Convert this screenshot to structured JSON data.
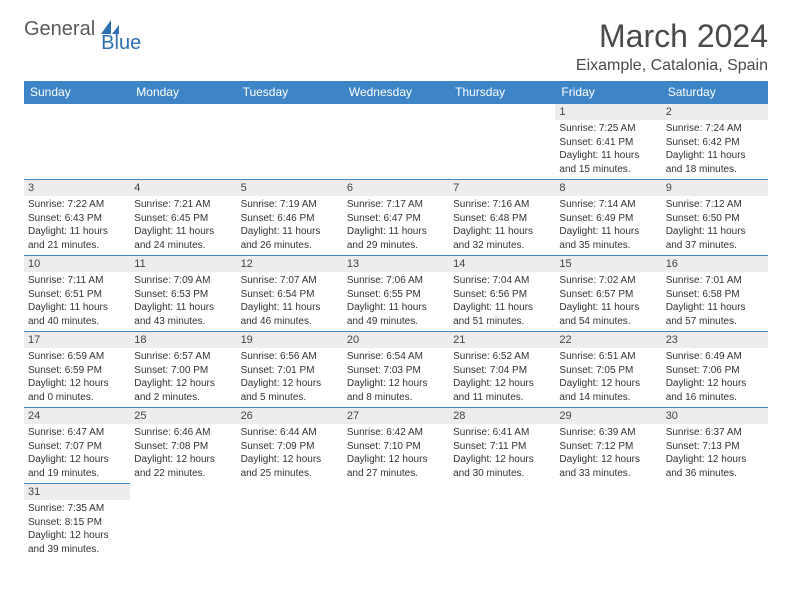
{
  "brand": {
    "part1": "General",
    "part2": "Blue"
  },
  "title": "March 2024",
  "location": "Eixample, Catalonia, Spain",
  "colors": {
    "header_bg": "#3d85c6",
    "header_fg": "#ffffff",
    "daynum_bg": "#ededed",
    "border": "#3d85c6",
    "brand_gray": "#5a5a5a",
    "brand_blue": "#2d6fb0"
  },
  "weekdays": [
    "Sunday",
    "Monday",
    "Tuesday",
    "Wednesday",
    "Thursday",
    "Friday",
    "Saturday"
  ],
  "weeks": [
    [
      {
        "empty": true
      },
      {
        "empty": true
      },
      {
        "empty": true
      },
      {
        "empty": true
      },
      {
        "empty": true
      },
      {
        "day": "1",
        "sunrise": "Sunrise: 7:25 AM",
        "sunset": "Sunset: 6:41 PM",
        "daylight": "Daylight: 11 hours and 15 minutes."
      },
      {
        "day": "2",
        "sunrise": "Sunrise: 7:24 AM",
        "sunset": "Sunset: 6:42 PM",
        "daylight": "Daylight: 11 hours and 18 minutes."
      }
    ],
    [
      {
        "day": "3",
        "sunrise": "Sunrise: 7:22 AM",
        "sunset": "Sunset: 6:43 PM",
        "daylight": "Daylight: 11 hours and 21 minutes."
      },
      {
        "day": "4",
        "sunrise": "Sunrise: 7:21 AM",
        "sunset": "Sunset: 6:45 PM",
        "daylight": "Daylight: 11 hours and 24 minutes."
      },
      {
        "day": "5",
        "sunrise": "Sunrise: 7:19 AM",
        "sunset": "Sunset: 6:46 PM",
        "daylight": "Daylight: 11 hours and 26 minutes."
      },
      {
        "day": "6",
        "sunrise": "Sunrise: 7:17 AM",
        "sunset": "Sunset: 6:47 PM",
        "daylight": "Daylight: 11 hours and 29 minutes."
      },
      {
        "day": "7",
        "sunrise": "Sunrise: 7:16 AM",
        "sunset": "Sunset: 6:48 PM",
        "daylight": "Daylight: 11 hours and 32 minutes."
      },
      {
        "day": "8",
        "sunrise": "Sunrise: 7:14 AM",
        "sunset": "Sunset: 6:49 PM",
        "daylight": "Daylight: 11 hours and 35 minutes."
      },
      {
        "day": "9",
        "sunrise": "Sunrise: 7:12 AM",
        "sunset": "Sunset: 6:50 PM",
        "daylight": "Daylight: 11 hours and 37 minutes."
      }
    ],
    [
      {
        "day": "10",
        "sunrise": "Sunrise: 7:11 AM",
        "sunset": "Sunset: 6:51 PM",
        "daylight": "Daylight: 11 hours and 40 minutes."
      },
      {
        "day": "11",
        "sunrise": "Sunrise: 7:09 AM",
        "sunset": "Sunset: 6:53 PM",
        "daylight": "Daylight: 11 hours and 43 minutes."
      },
      {
        "day": "12",
        "sunrise": "Sunrise: 7:07 AM",
        "sunset": "Sunset: 6:54 PM",
        "daylight": "Daylight: 11 hours and 46 minutes."
      },
      {
        "day": "13",
        "sunrise": "Sunrise: 7:06 AM",
        "sunset": "Sunset: 6:55 PM",
        "daylight": "Daylight: 11 hours and 49 minutes."
      },
      {
        "day": "14",
        "sunrise": "Sunrise: 7:04 AM",
        "sunset": "Sunset: 6:56 PM",
        "daylight": "Daylight: 11 hours and 51 minutes."
      },
      {
        "day": "15",
        "sunrise": "Sunrise: 7:02 AM",
        "sunset": "Sunset: 6:57 PM",
        "daylight": "Daylight: 11 hours and 54 minutes."
      },
      {
        "day": "16",
        "sunrise": "Sunrise: 7:01 AM",
        "sunset": "Sunset: 6:58 PM",
        "daylight": "Daylight: 11 hours and 57 minutes."
      }
    ],
    [
      {
        "day": "17",
        "sunrise": "Sunrise: 6:59 AM",
        "sunset": "Sunset: 6:59 PM",
        "daylight": "Daylight: 12 hours and 0 minutes."
      },
      {
        "day": "18",
        "sunrise": "Sunrise: 6:57 AM",
        "sunset": "Sunset: 7:00 PM",
        "daylight": "Daylight: 12 hours and 2 minutes."
      },
      {
        "day": "19",
        "sunrise": "Sunrise: 6:56 AM",
        "sunset": "Sunset: 7:01 PM",
        "daylight": "Daylight: 12 hours and 5 minutes."
      },
      {
        "day": "20",
        "sunrise": "Sunrise: 6:54 AM",
        "sunset": "Sunset: 7:03 PM",
        "daylight": "Daylight: 12 hours and 8 minutes."
      },
      {
        "day": "21",
        "sunrise": "Sunrise: 6:52 AM",
        "sunset": "Sunset: 7:04 PM",
        "daylight": "Daylight: 12 hours and 11 minutes."
      },
      {
        "day": "22",
        "sunrise": "Sunrise: 6:51 AM",
        "sunset": "Sunset: 7:05 PM",
        "daylight": "Daylight: 12 hours and 14 minutes."
      },
      {
        "day": "23",
        "sunrise": "Sunrise: 6:49 AM",
        "sunset": "Sunset: 7:06 PM",
        "daylight": "Daylight: 12 hours and 16 minutes."
      }
    ],
    [
      {
        "day": "24",
        "sunrise": "Sunrise: 6:47 AM",
        "sunset": "Sunset: 7:07 PM",
        "daylight": "Daylight: 12 hours and 19 minutes."
      },
      {
        "day": "25",
        "sunrise": "Sunrise: 6:46 AM",
        "sunset": "Sunset: 7:08 PM",
        "daylight": "Daylight: 12 hours and 22 minutes."
      },
      {
        "day": "26",
        "sunrise": "Sunrise: 6:44 AM",
        "sunset": "Sunset: 7:09 PM",
        "daylight": "Daylight: 12 hours and 25 minutes."
      },
      {
        "day": "27",
        "sunrise": "Sunrise: 6:42 AM",
        "sunset": "Sunset: 7:10 PM",
        "daylight": "Daylight: 12 hours and 27 minutes."
      },
      {
        "day": "28",
        "sunrise": "Sunrise: 6:41 AM",
        "sunset": "Sunset: 7:11 PM",
        "daylight": "Daylight: 12 hours and 30 minutes."
      },
      {
        "day": "29",
        "sunrise": "Sunrise: 6:39 AM",
        "sunset": "Sunset: 7:12 PM",
        "daylight": "Daylight: 12 hours and 33 minutes."
      },
      {
        "day": "30",
        "sunrise": "Sunrise: 6:37 AM",
        "sunset": "Sunset: 7:13 PM",
        "daylight": "Daylight: 12 hours and 36 minutes."
      }
    ],
    [
      {
        "day": "31",
        "sunrise": "Sunrise: 7:35 AM",
        "sunset": "Sunset: 8:15 PM",
        "daylight": "Daylight: 12 hours and 39 minutes."
      },
      {
        "empty": true
      },
      {
        "empty": true
      },
      {
        "empty": true
      },
      {
        "empty": true
      },
      {
        "empty": true
      },
      {
        "empty": true
      }
    ]
  ]
}
